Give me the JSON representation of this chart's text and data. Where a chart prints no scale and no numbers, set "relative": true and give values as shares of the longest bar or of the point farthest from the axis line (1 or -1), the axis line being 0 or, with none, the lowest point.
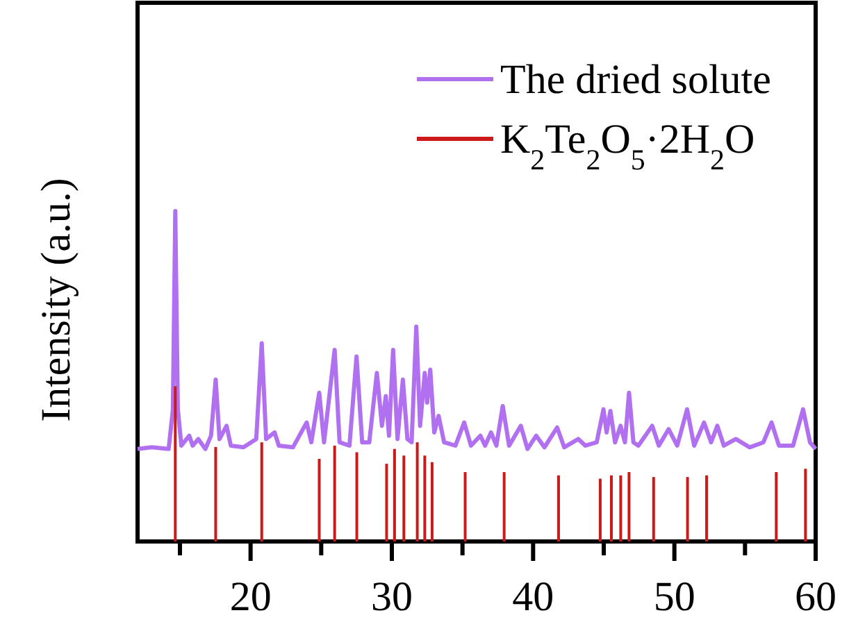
{
  "chart_data": {
    "type": "line",
    "ylabel": "Intensity (a.u.)",
    "relative": true,
    "legend": "top right",
    "xlim": [
      12,
      60
    ],
    "xticks": [
      {
        "value": 15,
        "label": null
      },
      20,
      {
        "value": 25,
        "label": null
      },
      30,
      {
        "value": 35,
        "label": null
      },
      40,
      {
        "value": 45,
        "label": null
      },
      50,
      {
        "value": 55,
        "label": null
      },
      60
    ],
    "series": [
      {
        "name": "The dried solute",
        "color": "#b070f0",
        "x": [
          12,
          13,
          14.2,
          14.5,
          14.67,
          14.85,
          15.1,
          15.66,
          15.9,
          16.3,
          16.8,
          17.2,
          17.53,
          17.8,
          18.3,
          18.6,
          19.5,
          20.4,
          20.79,
          21.1,
          21.7,
          22,
          23,
          23.97,
          24.3,
          24.86,
          25.2,
          25.95,
          26.3,
          27,
          27.5,
          27.9,
          28.4,
          28.94,
          29.3,
          29.57,
          29.8,
          30.09,
          30.4,
          30.78,
          31.1,
          31.4,
          31.73,
          32.0,
          32.33,
          32.5,
          32.72,
          33.0,
          33.31,
          33.7,
          34.5,
          35.12,
          35.6,
          36.27,
          36.6,
          37.02,
          37.4,
          37.85,
          38.3,
          39.13,
          39.6,
          40.22,
          40.8,
          41.7,
          42.2,
          43.2,
          43.7,
          44.5,
          44.98,
          45.2,
          45.47,
          45.8,
          46.19,
          46.5,
          46.79,
          47.1,
          47.45,
          48.43,
          48.9,
          49.59,
          50.2,
          50.9,
          51.4,
          52.1,
          52.6,
          53.04,
          53.5,
          54.35,
          55.33,
          56.3,
          56.88,
          57.4,
          58.4,
          59.11,
          59.6,
          60
        ],
        "values": [
          0.28,
          0.285,
          0.28,
          0.4,
          1.0,
          0.4,
          0.29,
          0.32,
          0.29,
          0.31,
          0.28,
          0.32,
          0.49,
          0.31,
          0.35,
          0.29,
          0.285,
          0.31,
          0.6,
          0.31,
          0.33,
          0.29,
          0.285,
          0.36,
          0.3,
          0.45,
          0.3,
          0.58,
          0.3,
          0.29,
          0.56,
          0.3,
          0.3,
          0.51,
          0.35,
          0.44,
          0.32,
          0.58,
          0.31,
          0.49,
          0.31,
          0.3,
          0.65,
          0.35,
          0.51,
          0.42,
          0.52,
          0.33,
          0.38,
          0.3,
          0.29,
          0.36,
          0.29,
          0.32,
          0.29,
          0.33,
          0.29,
          0.41,
          0.29,
          0.35,
          0.28,
          0.32,
          0.285,
          0.345,
          0.285,
          0.31,
          0.29,
          0.3,
          0.4,
          0.33,
          0.395,
          0.3,
          0.35,
          0.3,
          0.45,
          0.3,
          0.29,
          0.35,
          0.29,
          0.34,
          0.29,
          0.4,
          0.29,
          0.36,
          0.3,
          0.35,
          0.29,
          0.31,
          0.285,
          0.3,
          0.36,
          0.29,
          0.29,
          0.4,
          0.3,
          0.28
        ]
      },
      {
        "name": "K$_{2}$Te$_{2}$O$_{5}$·2H$_{2}$O",
        "type": "bar",
        "color": "#cc1a1a",
        "x": [
          14.67,
          17.53,
          20.79,
          24.86,
          25.95,
          27.52,
          29.63,
          30.19,
          30.85,
          31.8,
          32.33,
          32.85,
          35.19,
          37.95,
          41.8,
          44.75,
          45.54,
          46.2,
          46.79,
          48.53,
          50.93,
          52.28,
          57.21,
          59.28
        ],
        "values": [
          0.47,
          0.286,
          0.3,
          0.25,
          0.29,
          0.27,
          0.235,
          0.28,
          0.26,
          0.3,
          0.26,
          0.24,
          0.21,
          0.21,
          0.2,
          0.19,
          0.2,
          0.2,
          0.21,
          0.195,
          0.195,
          0.2,
          0.21,
          0.22
        ]
      }
    ]
  }
}
